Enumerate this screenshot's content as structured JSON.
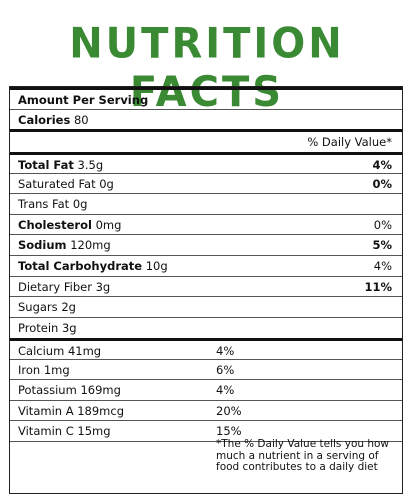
{
  "title": "NUTRITION FACTS",
  "amount_per_serving": "Amount Per Serving",
  "calories": {
    "label": "Calories",
    "value": "80"
  },
  "daily_value_header": "% Daily Value*",
  "nutrients": [
    {
      "label": "Total Fat",
      "value": "3.5g",
      "dv": "4%",
      "bold": true,
      "dv_bold": true
    },
    {
      "label": "Saturated Fat",
      "value": "0g",
      "dv": "0%",
      "bold": false,
      "dv_bold": true
    },
    {
      "label": "Trans Fat",
      "value": "0g",
      "dv": "",
      "bold": false,
      "dv_bold": false
    },
    {
      "label": "Cholesterol",
      "value": "0mg",
      "dv": "0%",
      "bold": true,
      "dv_bold": false
    },
    {
      "label": "Sodium",
      "value": "120mg",
      "dv": "5%",
      "bold": true,
      "dv_bold": true
    },
    {
      "label": "Total Carbohydrate",
      "value": "10g",
      "dv": "4%",
      "bold": true,
      "dv_bold": false
    },
    {
      "label": "Dietary Fiber",
      "value": "3g",
      "dv": "11%",
      "bold": false,
      "dv_bold": true
    },
    {
      "label": "Sugars",
      "value": "2g",
      "dv": "",
      "bold": false,
      "dv_bold": false
    },
    {
      "label": "Protein",
      "value": "3g",
      "dv": "",
      "bold": false,
      "dv_bold": false
    }
  ],
  "vitamins": [
    {
      "label": "Calcium",
      "value": "41mg",
      "dv": "4%"
    },
    {
      "label": "Iron",
      "value": "1mg",
      "dv": "6%"
    },
    {
      "label": "Potassium",
      "value": "169mg",
      "dv": "4%"
    },
    {
      "label": "Vitamin A",
      "value": "189mcg",
      "dv": "20%"
    },
    {
      "label": "Vitamin C",
      "value": "15mg",
      "dv": "15%"
    }
  ],
  "footnote": "*The % Daily Value tells you how much a nutrient in a serving of food contributes to a daily diet",
  "colors": {
    "title": "#3a8a34",
    "rule": "#111111"
  }
}
